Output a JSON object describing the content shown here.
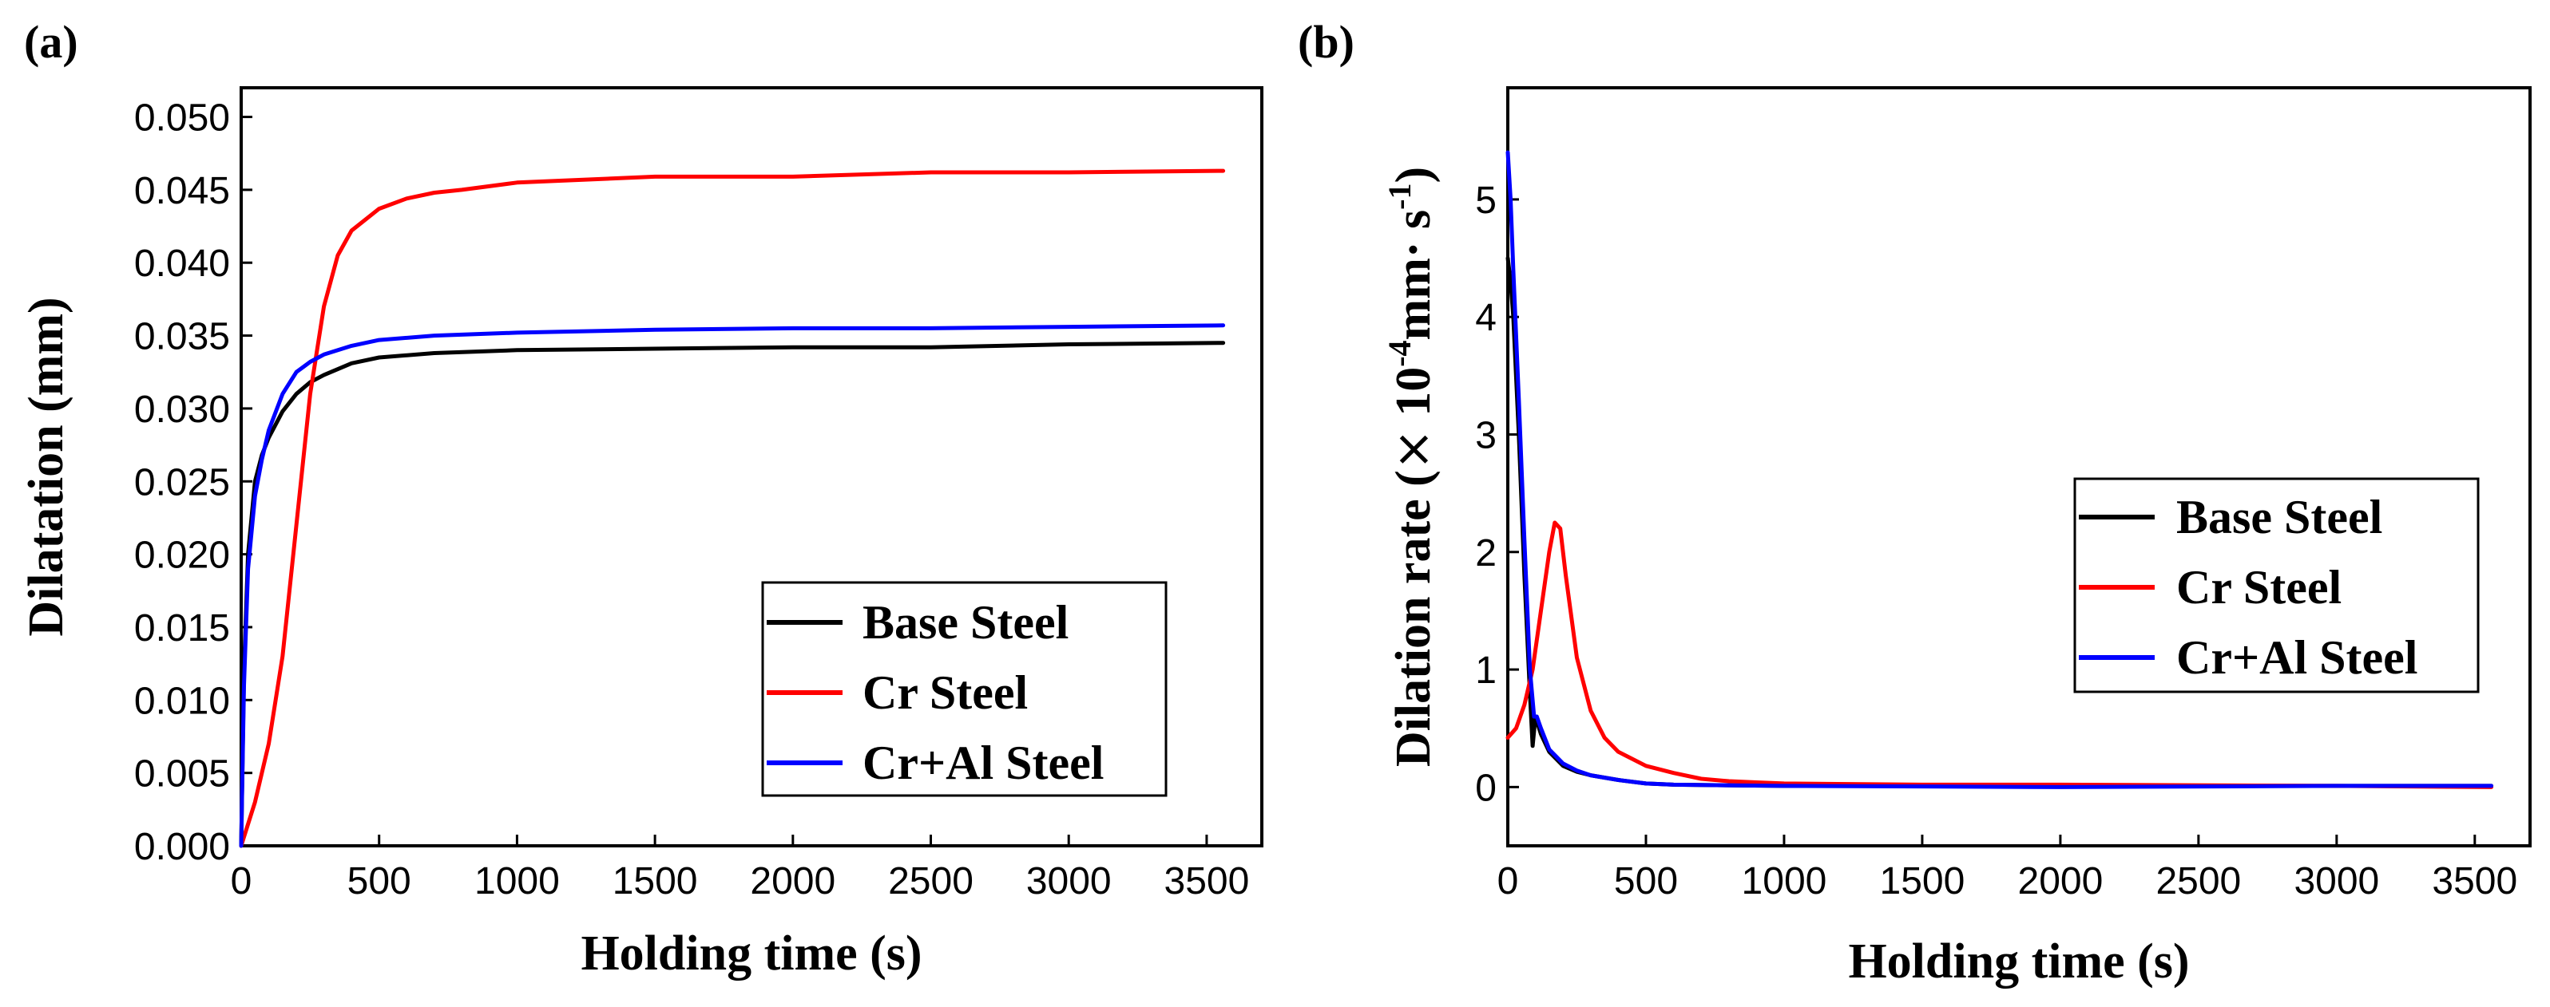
{
  "chart_data": [
    {
      "type": "line",
      "panel_label": "(a)",
      "xlabel": "Holding time (s)",
      "ylabel": "Dilatation (mm)",
      "xlim": [
        0,
        3700
      ],
      "ylim": [
        0,
        0.052
      ],
      "x_ticks": [
        0,
        500,
        1000,
        1500,
        2000,
        2500,
        3000,
        3500
      ],
      "x_tick_labels": [
        "0",
        "500",
        "1000",
        "1500",
        "2000",
        "2500",
        "3000",
        "3500"
      ],
      "y_ticks": [
        0,
        0.005,
        0.01,
        0.015,
        0.02,
        0.025,
        0.03,
        0.035,
        0.04,
        0.045,
        0.05
      ],
      "y_tick_labels": [
        "0.000",
        "0.005",
        "0.010",
        "0.015",
        "0.020",
        "0.025",
        "0.030",
        "0.035",
        "0.040",
        "0.045",
        "0.050"
      ],
      "legend": {
        "placement": "bottom-right",
        "entries": [
          "Base Steel",
          "Cr Steel",
          "Cr+Al Steel"
        ]
      },
      "series": [
        {
          "name": "Base Steel",
          "color": "#000000",
          "x": [
            0,
            10,
            25,
            50,
            75,
            100,
            150,
            200,
            250,
            300,
            400,
            500,
            700,
            1000,
            1500,
            2000,
            2500,
            3000,
            3560
          ],
          "y": [
            0,
            0.012,
            0.02,
            0.025,
            0.0268,
            0.028,
            0.0298,
            0.031,
            0.0318,
            0.0323,
            0.0331,
            0.0335,
            0.0338,
            0.034,
            0.0341,
            0.0342,
            0.0342,
            0.0344,
            0.0345
          ]
        },
        {
          "name": "Cr Steel",
          "color": "#ff0000",
          "x": [
            0,
            50,
            100,
            150,
            200,
            250,
            300,
            350,
            400,
            500,
            600,
            700,
            800,
            1000,
            1500,
            2000,
            2500,
            3000,
            3560
          ],
          "y": [
            0,
            0.003,
            0.007,
            0.013,
            0.022,
            0.031,
            0.037,
            0.0405,
            0.0422,
            0.0437,
            0.0444,
            0.0448,
            0.045,
            0.0455,
            0.0459,
            0.0459,
            0.0462,
            0.0462,
            0.0463
          ]
        },
        {
          "name": "Cr+Al Steel",
          "color": "#0000ff",
          "x": [
            0,
            10,
            25,
            50,
            75,
            100,
            150,
            200,
            250,
            300,
            400,
            500,
            700,
            1000,
            1500,
            2000,
            2500,
            3000,
            3560
          ],
          "y": [
            0,
            0.011,
            0.019,
            0.024,
            0.0265,
            0.0285,
            0.031,
            0.0325,
            0.0332,
            0.0337,
            0.0343,
            0.0347,
            0.035,
            0.0352,
            0.0354,
            0.0355,
            0.0355,
            0.0356,
            0.0357
          ]
        }
      ]
    },
    {
      "type": "line",
      "panel_label": "(b)",
      "xlabel": "Holding time (s)",
      "ylabel_main": "Dilation rate  (",
      "ylabel_times": "×",
      "ylabel_base": " 10",
      "ylabel_exp1": "-4",
      "ylabel_unit1": "mm",
      "ylabel_dot": "·",
      "ylabel_unit2": " s",
      "ylabel_exp2": "-1",
      "ylabel_close": ")",
      "xlim": [
        0,
        3700
      ],
      "ylim": [
        -0.5,
        5.95
      ],
      "x_ticks": [
        0,
        500,
        1000,
        1500,
        2000,
        2500,
        3000,
        3500
      ],
      "x_tick_labels": [
        "0",
        "500",
        "1000",
        "1500",
        "2000",
        "2500",
        "3000",
        "3500"
      ],
      "y_ticks": [
        0,
        1,
        2,
        3,
        4,
        5
      ],
      "y_tick_labels": [
        "0",
        "1",
        "2",
        "3",
        "4",
        "5"
      ],
      "legend": {
        "placement": "middle-right",
        "entries": [
          "Base Steel",
          "Cr Steel",
          "Cr+Al Steel"
        ]
      },
      "series": [
        {
          "name": "Base Steel",
          "color": "#000000",
          "x": [
            0,
            10,
            20,
            40,
            60,
            80,
            90,
            100,
            120,
            150,
            200,
            250,
            300,
            400,
            500,
            600,
            1000,
            2000,
            3000,
            3560
          ],
          "y": [
            4.5,
            4.3,
            4.0,
            3.0,
            1.8,
            0.8,
            0.35,
            0.6,
            0.45,
            0.3,
            0.18,
            0.13,
            0.1,
            0.06,
            0.03,
            0.02,
            0.01,
            0.01,
            0.01,
            0.01
          ]
        },
        {
          "name": "Cr Steel",
          "color": "#ff0000",
          "x": [
            0,
            30,
            60,
            90,
            120,
            150,
            170,
            190,
            210,
            250,
            300,
            350,
            400,
            500,
            600,
            700,
            800,
            900,
            1000,
            1500,
            2000,
            3000,
            3560
          ],
          "y": [
            0.42,
            0.5,
            0.7,
            1.0,
            1.5,
            2.0,
            2.25,
            2.2,
            1.8,
            1.1,
            0.65,
            0.42,
            0.3,
            0.18,
            0.12,
            0.07,
            0.05,
            0.04,
            0.03,
            0.02,
            0.02,
            0.01,
            0.0
          ]
        },
        {
          "name": "Cr+Al Steel",
          "color": "#0000ff",
          "x": [
            0,
            10,
            20,
            40,
            60,
            80,
            95,
            105,
            120,
            150,
            200,
            250,
            300,
            400,
            500,
            600,
            1000,
            2000,
            3000,
            3560
          ],
          "y": [
            5.4,
            5.0,
            4.4,
            3.3,
            2.1,
            1.0,
            0.6,
            0.6,
            0.5,
            0.32,
            0.2,
            0.14,
            0.1,
            0.06,
            0.03,
            0.02,
            0.01,
            0.0,
            0.01,
            0.01
          ]
        }
      ]
    }
  ]
}
